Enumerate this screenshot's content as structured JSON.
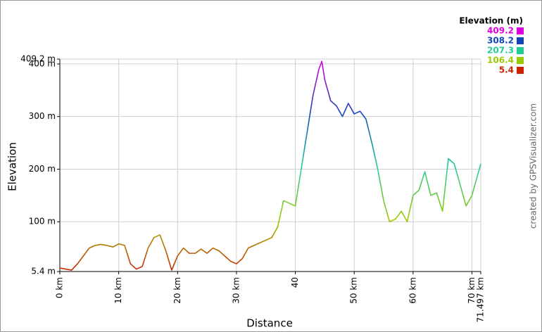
{
  "chart_data": {
    "type": "line",
    "xlabel": "Distance",
    "ylabel": "Elevation",
    "credit": "created by GPSVisualizer.com",
    "legend": {
      "title": "Elevation (m)",
      "entries": [
        {
          "value": 409.2,
          "color": "#dd00dd"
        },
        {
          "value": 308.2,
          "color": "#1144bb"
        },
        {
          "value": 207.3,
          "color": "#22cc99"
        },
        {
          "value": 106.4,
          "color": "#99cc00"
        },
        {
          "value": 5.4,
          "color": "#cc2200"
        }
      ]
    },
    "x": [
      0,
      1,
      2,
      3,
      4,
      5,
      6,
      7,
      8,
      9,
      10,
      11,
      12,
      13,
      14,
      15,
      16,
      17,
      18,
      19,
      20,
      21,
      22,
      23,
      24,
      25,
      26,
      27,
      28,
      29,
      30,
      31,
      32,
      33,
      34,
      35,
      36,
      37,
      38,
      39,
      40,
      41,
      42,
      43,
      44,
      44.5,
      45,
      46,
      47,
      48,
      49,
      50,
      51,
      52,
      53,
      54,
      55,
      56,
      57,
      58,
      59,
      60,
      61,
      62,
      63,
      64,
      65,
      66,
      67,
      68,
      69,
      70,
      71,
      71.497
    ],
    "values": [
      12,
      10,
      8,
      20,
      35,
      50,
      55,
      57,
      55,
      52,
      58,
      55,
      20,
      10,
      15,
      50,
      70,
      75,
      45,
      8,
      35,
      50,
      40,
      40,
      48,
      40,
      50,
      45,
      35,
      25,
      20,
      30,
      50,
      55,
      60,
      65,
      70,
      90,
      140,
      135,
      130,
      200,
      270,
      340,
      390,
      405,
      370,
      330,
      320,
      300,
      325,
      305,
      310,
      295,
      250,
      200,
      140,
      100,
      105,
      120,
      100,
      150,
      160,
      195,
      150,
      155,
      120,
      220,
      210,
      170,
      130,
      150,
      190,
      210
    ],
    "xlim": [
      0,
      71.497
    ],
    "xticks": [
      {
        "value": 0,
        "label": "0 km"
      },
      {
        "value": 10,
        "label": "10 km"
      },
      {
        "value": 20,
        "label": "20 km"
      },
      {
        "value": 30,
        "label": "30 km"
      },
      {
        "value": 40,
        "label": "40"
      },
      {
        "value": 50,
        "label": "50 km"
      },
      {
        "value": 60,
        "label": "60 km"
      },
      {
        "value": 70,
        "label": "70 km"
      },
      {
        "value": 71.497,
        "label": "71.497 km"
      }
    ],
    "ylim": [
      5.4,
      409.2
    ],
    "yticks": [
      {
        "value": 5.4,
        "label": "5.4 m"
      },
      {
        "value": 100,
        "label": "100 m"
      },
      {
        "value": 200,
        "label": "200 m"
      },
      {
        "value": 300,
        "label": "300 m"
      },
      {
        "value": 400,
        "label": "400 m"
      },
      {
        "value": 409.2,
        "label": "409.2 m"
      }
    ],
    "grid": true
  }
}
